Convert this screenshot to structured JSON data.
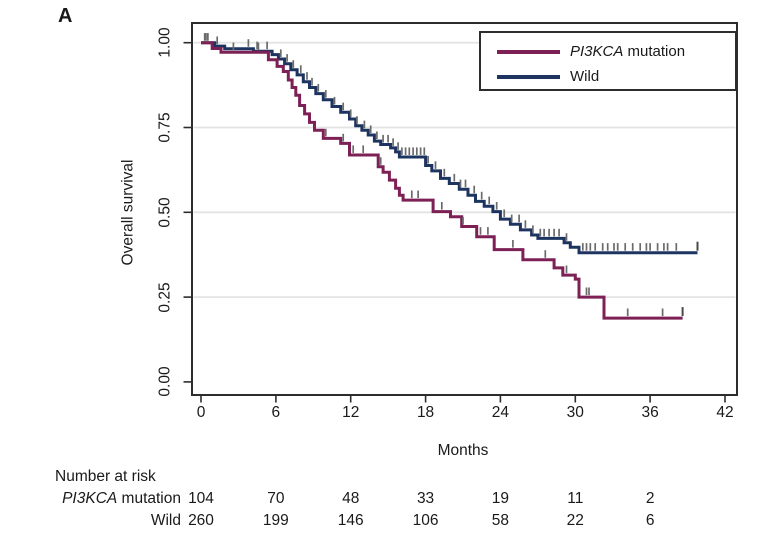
{
  "panel_label": "A",
  "y_axis": {
    "label": "Overall survival",
    "tick_labels": [
      "0.00",
      "0.25",
      "0.50",
      "0.75",
      "1.00"
    ]
  },
  "x_axis": {
    "label": "Months",
    "tick_labels": [
      "0",
      "6",
      "12",
      "18",
      "24",
      "30",
      "36",
      "42"
    ]
  },
  "legend": {
    "items": [
      {
        "italic": "PI3KCA",
        "rest": " mutation",
        "color": "#7D2055"
      },
      {
        "italic": "",
        "rest": "Wild",
        "color": "#1E3460"
      }
    ]
  },
  "risk_table": {
    "header": "Number at risk",
    "rows": [
      {
        "label_italic": "PI3KCA",
        "label_rest": " mutation",
        "counts": [
          "104",
          "70",
          "48",
          "33",
          "19",
          "11",
          "2"
        ]
      },
      {
        "label_italic": "",
        "label_rest": "Wild",
        "counts": [
          "260",
          "199",
          "146",
          "106",
          "58",
          "22",
          "6"
        ]
      }
    ]
  },
  "chart_data": {
    "type": "line",
    "subtype": "kaplan-meier-step",
    "title": "",
    "xlabel": "Months",
    "ylabel": "Overall survival",
    "xlim": [
      0,
      43.5
    ],
    "ylim": [
      0,
      1.0
    ],
    "x_ticks": [
      0,
      6,
      12,
      18,
      24,
      30,
      36,
      42
    ],
    "y_ticks": [
      0,
      0.25,
      0.5,
      0.75,
      1.0
    ],
    "gridline_y": [
      0.25,
      0.5,
      0.75,
      1.0
    ],
    "grid_color": "#E3E3E3",
    "axis_color": "#2D2D2D",
    "censor_color": "#6B6B6B",
    "legend_position": "top-right",
    "series": [
      {
        "name": "Wild",
        "color": "#1E3460",
        "end": 39.8,
        "steps": [
          [
            0,
            1.0
          ],
          [
            1.1,
            0.99
          ],
          [
            1.9,
            0.982
          ],
          [
            4.2,
            0.975
          ],
          [
            5.7,
            0.965
          ],
          [
            6.2,
            0.952
          ],
          [
            6.7,
            0.938
          ],
          [
            7.2,
            0.92
          ],
          [
            7.7,
            0.905
          ],
          [
            8.2,
            0.885
          ],
          [
            8.7,
            0.868
          ],
          [
            9.2,
            0.85
          ],
          [
            9.8,
            0.832
          ],
          [
            10.5,
            0.812
          ],
          [
            11.2,
            0.795
          ],
          [
            11.9,
            0.775
          ],
          [
            12.4,
            0.755
          ],
          [
            12.9,
            0.742
          ],
          [
            13.4,
            0.728
          ],
          [
            13.9,
            0.71
          ],
          [
            14.4,
            0.7
          ],
          [
            15.2,
            0.69
          ],
          [
            15.6,
            0.678
          ],
          [
            15.9,
            0.663
          ],
          [
            18.0,
            0.638
          ],
          [
            18.5,
            0.622
          ],
          [
            19.2,
            0.6
          ],
          [
            19.9,
            0.585
          ],
          [
            20.7,
            0.568
          ],
          [
            21.4,
            0.55
          ],
          [
            22.0,
            0.532
          ],
          [
            22.7,
            0.518
          ],
          [
            23.4,
            0.502
          ],
          [
            24.0,
            0.48
          ],
          [
            24.8,
            0.465
          ],
          [
            25.6,
            0.448
          ],
          [
            26.5,
            0.433
          ],
          [
            27.0,
            0.423
          ],
          [
            29.1,
            0.41
          ],
          [
            29.6,
            0.397
          ],
          [
            30.3,
            0.381
          ]
        ],
        "censor_times": [
          0.3,
          0.5,
          1.3,
          3.8,
          4.5,
          5.3,
          6.4,
          6.9,
          7.4,
          8.0,
          8.5,
          8.9,
          9.4,
          10.0,
          10.7,
          11.4,
          12.0,
          12.5,
          13.1,
          13.6,
          14.1,
          14.6,
          15.0,
          15.4,
          15.8,
          16.1,
          16.4,
          16.7,
          17.0,
          17.3,
          17.6,
          17.9,
          18.2,
          18.8,
          19.5,
          20.3,
          20.8,
          21.2,
          21.9,
          22.5,
          23.1,
          23.7,
          24.3,
          24.9,
          25.5,
          26.0,
          26.6,
          27.2,
          27.5,
          27.9,
          28.3,
          28.7,
          29.3,
          30.6,
          30.9,
          31.2,
          31.6,
          32.2,
          32.6,
          33.1,
          33.4,
          34.0,
          34.6,
          35.2,
          35.7,
          36.0,
          36.6,
          37.1,
          37.4,
          38.1,
          39.8
        ]
      },
      {
        "name": "PI3KCA mutation",
        "color": "#7D2055",
        "end": 38.6,
        "steps": [
          [
            0,
            1.0
          ],
          [
            0.9,
            0.983
          ],
          [
            1.6,
            0.972
          ],
          [
            5.4,
            0.95
          ],
          [
            6.1,
            0.93
          ],
          [
            6.6,
            0.915
          ],
          [
            7.0,
            0.89
          ],
          [
            7.3,
            0.868
          ],
          [
            7.6,
            0.845
          ],
          [
            7.9,
            0.815
          ],
          [
            8.3,
            0.79
          ],
          [
            8.7,
            0.765
          ],
          [
            9.1,
            0.742
          ],
          [
            9.8,
            0.718
          ],
          [
            11.2,
            0.703
          ],
          [
            11.9,
            0.669
          ],
          [
            14.2,
            0.634
          ],
          [
            14.6,
            0.618
          ],
          [
            15.1,
            0.595
          ],
          [
            15.6,
            0.571
          ],
          [
            15.9,
            0.55
          ],
          [
            16.2,
            0.536
          ],
          [
            18.6,
            0.502
          ],
          [
            20.0,
            0.487
          ],
          [
            20.9,
            0.458
          ],
          [
            22.1,
            0.428
          ],
          [
            23.5,
            0.39
          ],
          [
            25.8,
            0.36
          ],
          [
            28.3,
            0.336
          ],
          [
            29.0,
            0.315
          ],
          [
            30.0,
            0.303
          ],
          [
            30.3,
            0.25
          ],
          [
            32.3,
            0.188
          ]
        ],
        "censor_times": [
          0.35,
          0.55,
          2.6,
          4.6,
          10.0,
          11.4,
          12.2,
          13.0,
          14.4,
          16.9,
          17.4,
          19.3,
          21.0,
          22.4,
          23.0,
          25.0,
          27.6,
          29.3,
          30.9,
          31.1,
          34.2,
          37.0,
          38.6
        ]
      }
    ]
  }
}
